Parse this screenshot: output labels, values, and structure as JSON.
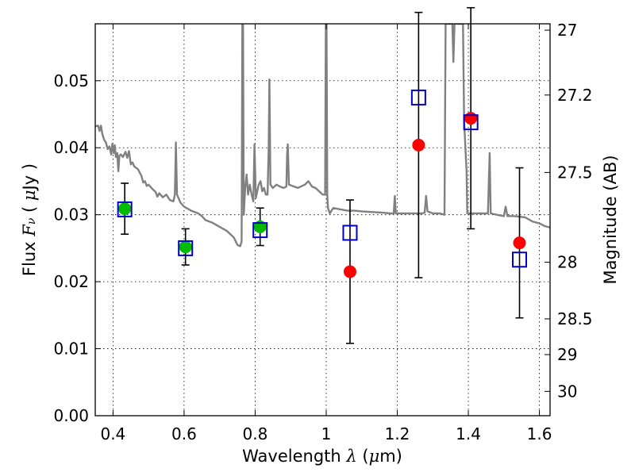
{
  "chart_data": {
    "type": "scatter",
    "xlabel_parts": [
      "Wavelength  ",
      "λ",
      " (",
      "μ",
      "m)"
    ],
    "ylabel_parts": [
      "Flux  ",
      "F",
      "ν",
      "  ( ",
      "μ",
      "Jy )"
    ],
    "y2label": "Magnitude (AB)",
    "xlim": [
      0.35,
      1.63
    ],
    "ylim": [
      0.0,
      0.0585
    ],
    "grid": true,
    "x_ticks": [
      {
        "value": 0.4,
        "label": "0.4"
      },
      {
        "value": 0.6,
        "label": "0.6"
      },
      {
        "value": 0.8,
        "label": "0.8"
      },
      {
        "value": 1.0,
        "label": "1"
      },
      {
        "value": 1.2,
        "label": "1.2"
      },
      {
        "value": 1.4,
        "label": "1.4"
      },
      {
        "value": 1.6,
        "label": "1.6"
      }
    ],
    "y_ticks": [
      {
        "value": 0.0,
        "label": "0.00"
      },
      {
        "value": 0.01,
        "label": "0.01"
      },
      {
        "value": 0.02,
        "label": "0.02"
      },
      {
        "value": 0.03,
        "label": "0.03"
      },
      {
        "value": 0.04,
        "label": "0.04"
      },
      {
        "value": 0.05,
        "label": "0.05"
      }
    ],
    "y2_ticks": [
      {
        "value": 27,
        "label": "27"
      },
      {
        "value": 27.2,
        "label": "27.2"
      },
      {
        "value": 27.5,
        "label": "27.5"
      },
      {
        "value": 28,
        "label": "28"
      },
      {
        "value": 28.5,
        "label": "28.5"
      },
      {
        "value": 29,
        "label": "29"
      },
      {
        "value": 30,
        "label": "30"
      }
    ],
    "template_spectrum": {
      "color": "#808080",
      "points": [
        [
          0.35,
          0.0432
        ],
        [
          0.358,
          0.0433
        ],
        [
          0.362,
          0.0425
        ],
        [
          0.366,
          0.0433
        ],
        [
          0.37,
          0.042
        ],
        [
          0.375,
          0.0412
        ],
        [
          0.38,
          0.0408
        ],
        [
          0.385,
          0.0398
        ],
        [
          0.39,
          0.0402
        ],
        [
          0.395,
          0.039
        ],
        [
          0.398,
          0.0406
        ],
        [
          0.402,
          0.0392
        ],
        [
          0.405,
          0.0404
        ],
        [
          0.408,
          0.0386
        ],
        [
          0.412,
          0.0392
        ],
        [
          0.415,
          0.0365
        ],
        [
          0.418,
          0.0388
        ],
        [
          0.422,
          0.039
        ],
        [
          0.428,
          0.0386
        ],
        [
          0.435,
          0.0394
        ],
        [
          0.44,
          0.0385
        ],
        [
          0.445,
          0.0395
        ],
        [
          0.45,
          0.0375
        ],
        [
          0.455,
          0.0378
        ],
        [
          0.46,
          0.0372
        ],
        [
          0.47,
          0.0368
        ],
        [
          0.48,
          0.0358
        ],
        [
          0.485,
          0.0348
        ],
        [
          0.49,
          0.035
        ],
        [
          0.495,
          0.0343
        ],
        [
          0.5,
          0.0345
        ],
        [
          0.51,
          0.0339
        ],
        [
          0.52,
          0.0334
        ],
        [
          0.525,
          0.0327
        ],
        [
          0.53,
          0.0332
        ],
        [
          0.54,
          0.0326
        ],
        [
          0.55,
          0.033
        ],
        [
          0.56,
          0.0322
        ],
        [
          0.57,
          0.032
        ],
        [
          0.574,
          0.033
        ],
        [
          0.577,
          0.0408
        ],
        [
          0.58,
          0.033
        ],
        [
          0.59,
          0.0318
        ],
        [
          0.6,
          0.0312
        ],
        [
          0.62,
          0.0306
        ],
        [
          0.64,
          0.0302
        ],
        [
          0.65,
          0.0298
        ],
        [
          0.66,
          0.0292
        ],
        [
          0.68,
          0.0288
        ],
        [
          0.7,
          0.0282
        ],
        [
          0.72,
          0.0276
        ],
        [
          0.74,
          0.0266
        ],
        [
          0.75,
          0.0255
        ],
        [
          0.758,
          0.0253
        ],
        [
          0.762,
          0.026
        ],
        [
          0.764,
          0.0585
        ],
        [
          0.766,
          0.0585
        ],
        [
          0.768,
          0.03
        ],
        [
          0.772,
          0.034
        ],
        [
          0.776,
          0.036
        ],
        [
          0.78,
          0.033
        ],
        [
          0.785,
          0.0345
        ],
        [
          0.79,
          0.033
        ],
        [
          0.795,
          0.032
        ],
        [
          0.798,
          0.0405
        ],
        [
          0.802,
          0.0325
        ],
        [
          0.806,
          0.0335
        ],
        [
          0.81,
          0.0345
        ],
        [
          0.815,
          0.035
        ],
        [
          0.82,
          0.0335
        ],
        [
          0.825,
          0.034
        ],
        [
          0.83,
          0.033
        ],
        [
          0.835,
          0.033
        ],
        [
          0.838,
          0.04
        ],
        [
          0.84,
          0.0502
        ],
        [
          0.843,
          0.0345
        ],
        [
          0.85,
          0.034
        ],
        [
          0.86,
          0.0345
        ],
        [
          0.87,
          0.0342
        ],
        [
          0.88,
          0.034
        ],
        [
          0.888,
          0.0342
        ],
        [
          0.89,
          0.039
        ],
        [
          0.892,
          0.0405
        ],
        [
          0.895,
          0.0345
        ],
        [
          0.92,
          0.034
        ],
        [
          0.94,
          0.0345
        ],
        [
          0.95,
          0.035
        ],
        [
          0.96,
          0.0342
        ],
        [
          0.97,
          0.034
        ],
        [
          0.98,
          0.0335
        ],
        [
          0.99,
          0.033
        ],
        [
          0.997,
          0.033
        ],
        [
          0.999,
          0.0585
        ],
        [
          1.001,
          0.0585
        ],
        [
          1.003,
          0.033
        ],
        [
          1.005,
          0.031
        ],
        [
          1.01,
          0.0302
        ],
        [
          1.02,
          0.031
        ],
        [
          1.04,
          0.0308
        ],
        [
          1.06,
          0.0306
        ],
        [
          1.08,
          0.0306
        ],
        [
          1.1,
          0.0305
        ],
        [
          1.13,
          0.0304
        ],
        [
          1.16,
          0.0303
        ],
        [
          1.18,
          0.0302
        ],
        [
          1.19,
          0.0302
        ],
        [
          1.193,
          0.0328
        ],
        [
          1.196,
          0.0302
        ],
        [
          1.22,
          0.0302
        ],
        [
          1.25,
          0.0302
        ],
        [
          1.27,
          0.0302
        ],
        [
          1.277,
          0.0303
        ],
        [
          1.281,
          0.0328
        ],
        [
          1.285,
          0.0305
        ],
        [
          1.3,
          0.0302
        ],
        [
          1.32,
          0.0302
        ],
        [
          1.333,
          0.03
        ],
        [
          1.336,
          0.0585
        ],
        [
          1.355,
          0.0585
        ],
        [
          1.358,
          0.0528
        ],
        [
          1.361,
          0.0585
        ],
        [
          1.385,
          0.0585
        ],
        [
          1.388,
          0.044
        ],
        [
          1.395,
          0.0365
        ],
        [
          1.397,
          0.0302
        ],
        [
          1.42,
          0.0302
        ],
        [
          1.44,
          0.0302
        ],
        [
          1.455,
          0.0302
        ],
        [
          1.46,
          0.0392
        ],
        [
          1.463,
          0.0302
        ],
        [
          1.48,
          0.03
        ],
        [
          1.5,
          0.0298
        ],
        [
          1.505,
          0.0312
        ],
        [
          1.51,
          0.0298
        ],
        [
          1.53,
          0.0298
        ],
        [
          1.56,
          0.0296
        ],
        [
          1.58,
          0.029
        ],
        [
          1.6,
          0.0287
        ],
        [
          1.615,
          0.0283
        ],
        [
          1.63,
          0.0281
        ]
      ]
    },
    "observed_green": {
      "color": "#00bb00",
      "points": [
        {
          "x": 0.433,
          "y": 0.0309,
          "err": 0.0038
        },
        {
          "x": 0.604,
          "y": 0.0252,
          "err": 0.0027
        },
        {
          "x": 0.814,
          "y": 0.0282,
          "err": 0.0028
        }
      ]
    },
    "observed_red": {
      "color": "#ff0000",
      "points": [
        {
          "x": 1.067,
          "y": 0.0215,
          "err": 0.0107
        },
        {
          "x": 1.26,
          "y": 0.0404,
          "err": 0.0198
        },
        {
          "x": 1.407,
          "y": 0.0444,
          "err": 0.0165
        },
        {
          "x": 1.544,
          "y": 0.0258,
          "err": 0.0112
        }
      ]
    },
    "model_squares": {
      "color": "#0000cc",
      "points": [
        {
          "x": 0.433,
          "y": 0.0308
        },
        {
          "x": 0.604,
          "y": 0.025
        },
        {
          "x": 0.814,
          "y": 0.0277
        },
        {
          "x": 1.067,
          "y": 0.0273
        },
        {
          "x": 1.26,
          "y": 0.0475
        },
        {
          "x": 1.407,
          "y": 0.0438
        },
        {
          "x": 1.544,
          "y": 0.0233
        }
      ]
    }
  }
}
